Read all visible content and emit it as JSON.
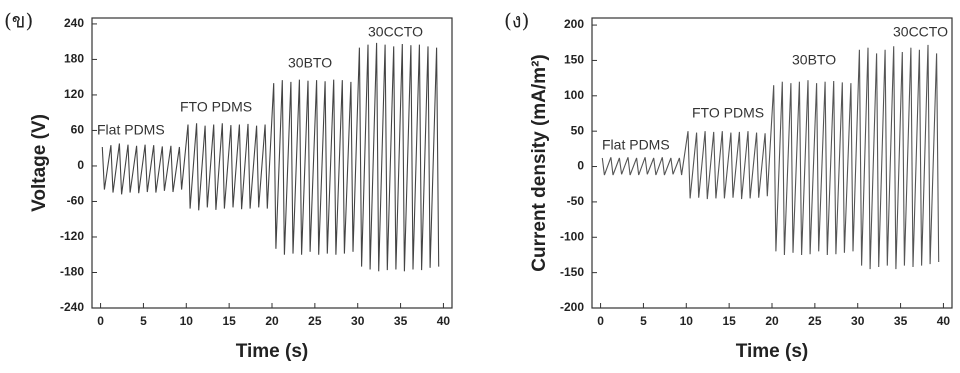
{
  "chart_data": [
    {
      "type": "line",
      "panel_label": "(ข)",
      "ylabel": "Voltage (V)",
      "xlabel": "Time (s)",
      "annotations": [
        "Flat PDMS",
        "FTO PDMS",
        "30BTO",
        "30CCTO"
      ],
      "color": "#444444",
      "xlim": [
        -1,
        41
      ],
      "xticks": [
        0,
        5,
        10,
        15,
        20,
        25,
        30,
        35,
        40
      ],
      "ylim": [
        -240,
        250
      ],
      "yticks": [
        -240,
        -180,
        -120,
        -60,
        0,
        60,
        120,
        180,
        240
      ],
      "x": [
        0.2,
        0.45,
        1.2,
        1.45,
        2.2,
        2.45,
        3.2,
        3.45,
        4.2,
        4.45,
        5.2,
        5.45,
        6.2,
        6.45,
        7.2,
        7.45,
        8.2,
        8.45,
        9.2,
        9.45,
        10.2,
        10.45,
        11.2,
        11.45,
        12.2,
        12.45,
        13.2,
        13.45,
        14.2,
        14.45,
        15.2,
        15.45,
        16.2,
        16.45,
        17.2,
        17.45,
        18.2,
        18.45,
        19.2,
        19.45,
        20.2,
        20.45,
        21.2,
        21.45,
        22.2,
        22.45,
        23.2,
        23.45,
        24.2,
        24.45,
        25.2,
        25.45,
        26.2,
        26.45,
        27.2,
        27.45,
        28.2,
        28.45,
        29.2,
        29.45,
        30.2,
        30.45,
        31.2,
        31.45,
        32.2,
        32.45,
        33.2,
        33.45,
        34.2,
        34.45,
        35.2,
        35.45,
        36.2,
        36.45,
        37.2,
        37.45,
        38.2,
        38.45,
        39.2,
        39.45
      ],
      "values": [
        32,
        -40,
        35,
        -45,
        38,
        -48,
        36,
        -45,
        34,
        -46,
        36,
        -44,
        35,
        -45,
        33,
        -42,
        34,
        -44,
        32,
        -40,
        70,
        -72,
        72,
        -75,
        68,
        -70,
        70,
        -74,
        72,
        -72,
        69,
        -70,
        70,
        -73,
        71,
        -72,
        68,
        -70,
        70,
        -72,
        140,
        -140,
        145,
        -150,
        142,
        -148,
        146,
        -150,
        144,
        -145,
        145,
        -150,
        143,
        -148,
        146,
        -150,
        145,
        -148,
        142,
        -145,
        200,
        -170,
        205,
        -175,
        208,
        -178,
        205,
        -176,
        202,
        -175,
        206,
        -178,
        204,
        -175,
        205,
        -176,
        202,
        -172,
        200,
        -170
      ]
    },
    {
      "type": "line",
      "panel_label": "(ง)",
      "ylabel": "Current density (mA/m²)",
      "xlabel": "Time (s)",
      "annotations": [
        "Flat PDMS",
        "FTO PDMS",
        "30BTO",
        "30CCTO"
      ],
      "color": "#555555",
      "xlim": [
        -1,
        41
      ],
      "xticks": [
        0,
        5,
        10,
        15,
        20,
        25,
        30,
        35,
        40
      ],
      "ylim": [
        -200,
        210
      ],
      "yticks": [
        -200,
        -150,
        -100,
        -50,
        0,
        50,
        100,
        150,
        200
      ],
      "x": [
        0.2,
        0.45,
        1.2,
        1.45,
        2.2,
        2.45,
        3.2,
        3.45,
        4.2,
        4.45,
        5.2,
        5.45,
        6.2,
        6.45,
        7.2,
        7.45,
        8.2,
        8.45,
        9.2,
        9.45,
        10.2,
        10.45,
        11.2,
        11.45,
        12.2,
        12.45,
        13.2,
        13.45,
        14.2,
        14.45,
        15.2,
        15.45,
        16.2,
        16.45,
        17.2,
        17.45,
        18.2,
        18.45,
        19.2,
        19.45,
        20.2,
        20.45,
        21.2,
        21.45,
        22.2,
        22.45,
        23.2,
        23.45,
        24.2,
        24.45,
        25.2,
        25.45,
        26.2,
        26.45,
        27.2,
        27.45,
        28.2,
        28.45,
        29.2,
        29.45,
        30.2,
        30.45,
        31.2,
        31.45,
        32.2,
        32.45,
        33.2,
        33.45,
        34.2,
        34.45,
        35.2,
        35.45,
        36.2,
        36.45,
        37.2,
        37.45,
        38.2,
        38.45,
        39.2,
        39.45
      ],
      "values": [
        12,
        -12,
        13,
        -12,
        12,
        -11,
        13,
        -12,
        12,
        -12,
        13,
        -11,
        12,
        -12,
        13,
        -12,
        12,
        -11,
        12,
        -12,
        50,
        -45,
        48,
        -44,
        50,
        -46,
        49,
        -45,
        50,
        -45,
        48,
        -44,
        49,
        -46,
        50,
        -45,
        48,
        -44,
        47,
        -42,
        115,
        -120,
        120,
        -125,
        118,
        -122,
        120,
        -125,
        122,
        -124,
        118,
        -120,
        120,
        -125,
        121,
        -124,
        119,
        -122,
        118,
        -120,
        165,
        -140,
        168,
        -145,
        160,
        -142,
        165,
        -140,
        170,
        -145,
        162,
        -140,
        168,
        -142,
        165,
        -140,
        172,
        -138,
        160,
        -135
      ]
    }
  ]
}
